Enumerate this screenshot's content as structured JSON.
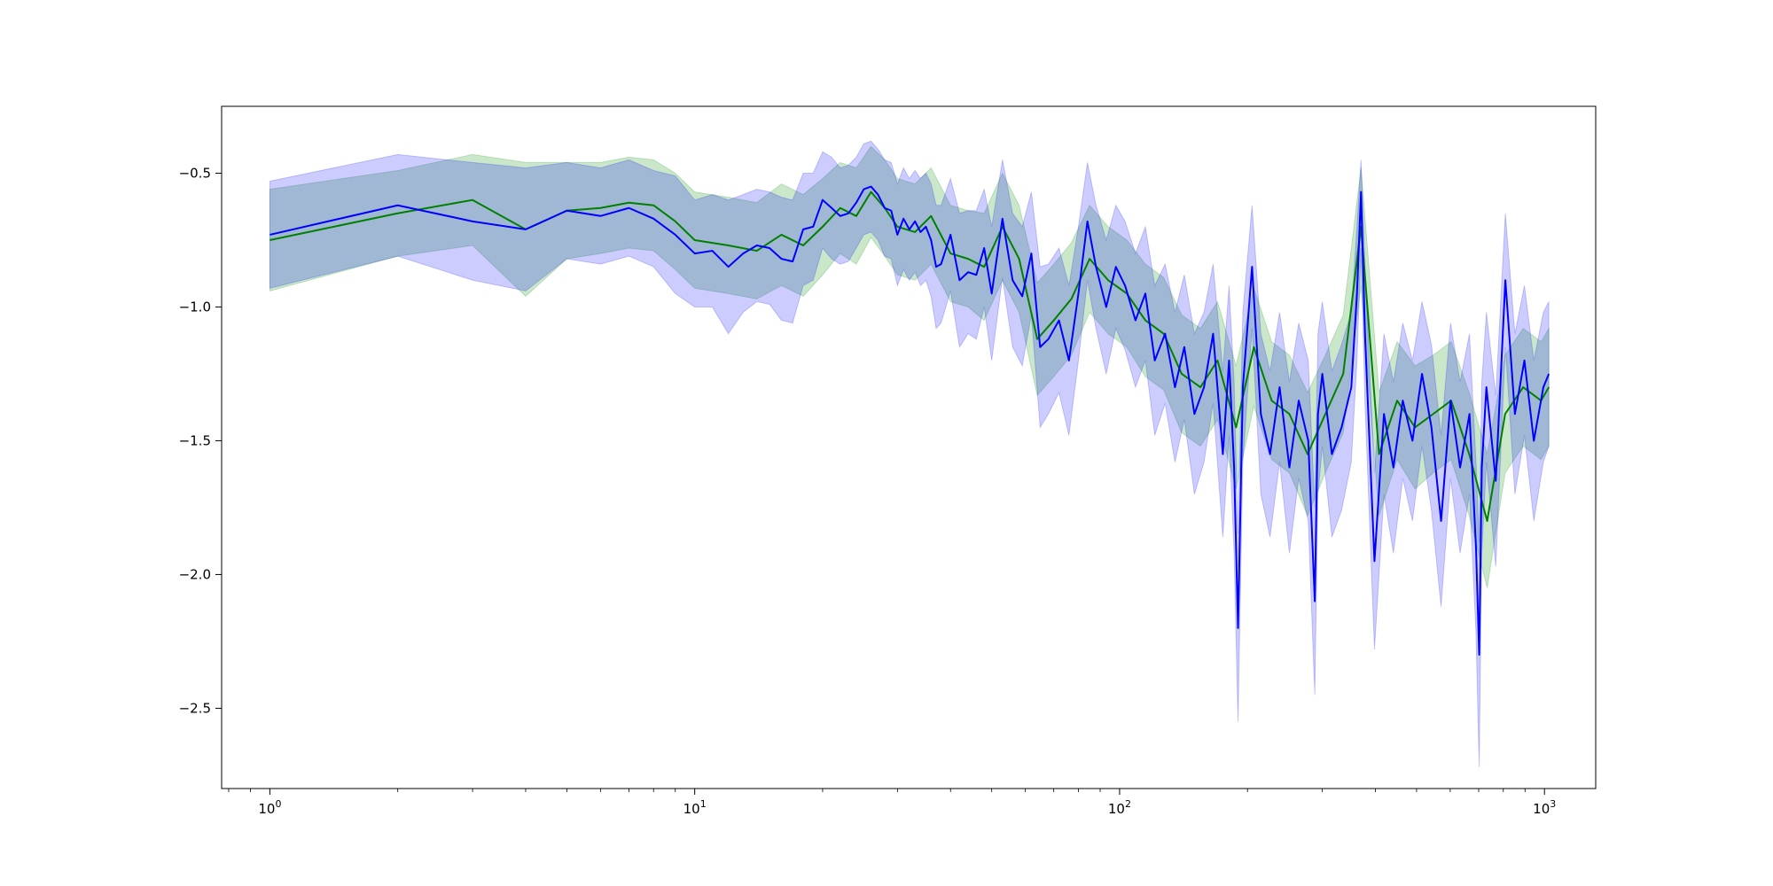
{
  "chart_data": {
    "type": "line",
    "title": "",
    "xlabel": "",
    "ylabel": "",
    "xscale": "log",
    "xlim": [
      0.77,
      1320
    ],
    "ylim": [
      -2.8,
      -0.25
    ],
    "grid": false,
    "legend": "none",
    "x_ticks": [
      {
        "value": 1,
        "base": "10",
        "exp": "0"
      },
      {
        "value": 10,
        "base": "10",
        "exp": "1"
      },
      {
        "value": 100,
        "base": "10",
        "exp": "2"
      },
      {
        "value": 1000,
        "base": "10",
        "exp": "3"
      }
    ],
    "y_ticks": [
      {
        "value": -0.5,
        "label": "−0.5"
      },
      {
        "value": -1.0,
        "label": "−1.0"
      },
      {
        "value": -1.5,
        "label": "−1.5"
      },
      {
        "value": -2.0,
        "label": "−2.0"
      },
      {
        "value": -2.5,
        "label": "−2.5"
      }
    ],
    "series": [
      {
        "color": "#008000",
        "band_color": "#2ca02c",
        "band_opacity": 0.25,
        "x": [
          1,
          2,
          3,
          4,
          5,
          6,
          7,
          8,
          9,
          10,
          12,
          14,
          16,
          18,
          20,
          22,
          24,
          26,
          28,
          30,
          33,
          36,
          40,
          44,
          48,
          53,
          58,
          64,
          70,
          77,
          85,
          94,
          104,
          115,
          127,
          140,
          155,
          170,
          188,
          207,
          228,
          251,
          277,
          305,
          336,
          370,
          408,
          450,
          496,
          547,
          603,
          665,
          733,
          808,
          891,
          982,
          1024
        ],
        "y": [
          -0.75,
          -0.65,
          -0.6,
          -0.71,
          -0.64,
          -0.63,
          -0.61,
          -0.62,
          -0.68,
          -0.75,
          -0.77,
          -0.79,
          -0.73,
          -0.77,
          -0.7,
          -0.63,
          -0.66,
          -0.57,
          -0.63,
          -0.7,
          -0.72,
          -0.66,
          -0.8,
          -0.82,
          -0.85,
          -0.7,
          -0.82,
          -1.12,
          -1.05,
          -0.97,
          -0.82,
          -0.9,
          -0.95,
          -1.05,
          -1.1,
          -1.25,
          -1.3,
          -1.2,
          -1.45,
          -1.15,
          -1.35,
          -1.4,
          -1.55,
          -1.4,
          -1.25,
          -0.7,
          -1.55,
          -1.35,
          -1.45,
          -1.4,
          -1.35,
          -1.55,
          -1.8,
          -1.4,
          -1.3,
          -1.35,
          -1.3
        ],
        "lower": [
          -0.94,
          -0.81,
          -0.77,
          -0.96,
          -0.82,
          -0.8,
          -0.78,
          -0.79,
          -0.86,
          -0.93,
          -0.95,
          -0.97,
          -0.92,
          -0.96,
          -0.88,
          -0.8,
          -0.84,
          -0.74,
          -0.81,
          -0.88,
          -0.9,
          -0.84,
          -0.98,
          -1.0,
          -1.05,
          -0.9,
          -1.02,
          -1.33,
          -1.26,
          -1.18,
          -1.02,
          -1.1,
          -1.15,
          -1.26,
          -1.31,
          -1.47,
          -1.52,
          -1.42,
          -1.68,
          -1.37,
          -1.57,
          -1.62,
          -1.78,
          -1.62,
          -1.47,
          -0.92,
          -1.78,
          -1.57,
          -1.68,
          -1.62,
          -1.57,
          -1.78,
          -2.05,
          -1.62,
          -1.52,
          -1.57,
          -1.52
        ],
        "upper": [
          -0.56,
          -0.49,
          -0.43,
          -0.46,
          -0.46,
          -0.46,
          -0.44,
          -0.45,
          -0.5,
          -0.57,
          -0.59,
          -0.61,
          -0.54,
          -0.58,
          -0.52,
          -0.46,
          -0.48,
          -0.4,
          -0.45,
          -0.52,
          -0.54,
          -0.48,
          -0.62,
          -0.64,
          -0.65,
          -0.5,
          -0.62,
          -0.91,
          -0.84,
          -0.76,
          -0.62,
          -0.7,
          -0.75,
          -0.84,
          -0.89,
          -1.03,
          -1.08,
          -0.98,
          -1.22,
          -0.93,
          -1.13,
          -1.18,
          -1.32,
          -1.18,
          -1.03,
          -0.48,
          -1.32,
          -1.13,
          -1.22,
          -1.18,
          -1.13,
          -1.32,
          -1.55,
          -1.18,
          -1.08,
          -1.13,
          -1.08
        ]
      },
      {
        "color": "#0000ff",
        "band_color": "#0000ff",
        "band_opacity": 0.2,
        "x": [
          1,
          2,
          3,
          4,
          5,
          6,
          7,
          8,
          9,
          10,
          11,
          12,
          13,
          14,
          15,
          16,
          17,
          18,
          19,
          20,
          21,
          22,
          23,
          24,
          25,
          26,
          27,
          28,
          29,
          30,
          31,
          32,
          33,
          34,
          35,
          36,
          37,
          38,
          40,
          42,
          44,
          46,
          48,
          50,
          53,
          56,
          59,
          62,
          65,
          68,
          72,
          76,
          80,
          84,
          88,
          93,
          98,
          103,
          109,
          115,
          121,
          128,
          135,
          142,
          150,
          158,
          166,
          175,
          181,
          186,
          190,
          195,
          205,
          215,
          226,
          238,
          251,
          264,
          278,
          288,
          293,
          300,
          316,
          333,
          351,
          362,
          370,
          378,
          398,
          419,
          441,
          464,
          489,
          515,
          542,
          571,
          601,
          633,
          666,
          690,
          702,
          712,
          730,
          768,
          809,
          852,
          897,
          944,
          994,
          1024
        ],
        "y": [
          -0.73,
          -0.62,
          -0.68,
          -0.71,
          -0.64,
          -0.66,
          -0.63,
          -0.67,
          -0.73,
          -0.8,
          -0.79,
          -0.85,
          -0.8,
          -0.77,
          -0.78,
          -0.82,
          -0.83,
          -0.71,
          -0.7,
          -0.6,
          -0.63,
          -0.66,
          -0.65,
          -0.61,
          -0.56,
          -0.55,
          -0.58,
          -0.63,
          -0.64,
          -0.73,
          -0.67,
          -0.71,
          -0.68,
          -0.72,
          -0.7,
          -0.75,
          -0.85,
          -0.84,
          -0.73,
          -0.9,
          -0.87,
          -0.88,
          -0.78,
          -0.95,
          -0.67,
          -0.9,
          -0.96,
          -0.8,
          -1.15,
          -1.12,
          -1.05,
          -1.2,
          -0.95,
          -0.68,
          -0.85,
          -1.0,
          -0.85,
          -0.92,
          -1.05,
          -0.95,
          -1.2,
          -1.1,
          -1.3,
          -1.15,
          -1.4,
          -1.3,
          -1.1,
          -1.55,
          -1.2,
          -1.6,
          -2.2,
          -1.3,
          -0.85,
          -1.4,
          -1.55,
          -1.3,
          -1.6,
          -1.35,
          -1.5,
          -2.1,
          -1.4,
          -1.25,
          -1.55,
          -1.45,
          -1.3,
          -0.95,
          -0.57,
          -1.1,
          -1.95,
          -1.4,
          -1.6,
          -1.35,
          -1.5,
          -1.25,
          -1.45,
          -1.8,
          -1.35,
          -1.6,
          -1.4,
          -1.9,
          -2.3,
          -1.6,
          -1.3,
          -1.65,
          -0.9,
          -1.4,
          -1.2,
          -1.5,
          -1.3,
          -1.25
        ],
        "lower": [
          -0.93,
          -0.81,
          -0.9,
          -0.94,
          -0.82,
          -0.84,
          -0.81,
          -0.85,
          -0.95,
          -1.0,
          -1.0,
          -1.1,
          -1.02,
          -0.98,
          -0.99,
          -1.05,
          -1.06,
          -0.92,
          -0.9,
          -0.78,
          -0.82,
          -0.84,
          -0.83,
          -0.78,
          -0.73,
          -0.72,
          -0.75,
          -0.81,
          -0.82,
          -0.92,
          -0.86,
          -0.9,
          -0.87,
          -0.92,
          -0.9,
          -0.96,
          -1.08,
          -1.06,
          -0.94,
          -1.15,
          -1.1,
          -1.12,
          -1.0,
          -1.2,
          -0.89,
          -1.15,
          -1.22,
          -1.03,
          -1.45,
          -1.4,
          -1.32,
          -1.48,
          -1.2,
          -0.9,
          -1.08,
          -1.25,
          -1.08,
          -1.16,
          -1.3,
          -1.2,
          -1.48,
          -1.36,
          -1.58,
          -1.42,
          -1.7,
          -1.58,
          -1.36,
          -1.86,
          -1.48,
          -1.92,
          -2.55,
          -1.58,
          -1.08,
          -1.7,
          -1.86,
          -1.58,
          -1.92,
          -1.64,
          -1.8,
          -2.45,
          -1.7,
          -1.52,
          -1.86,
          -1.76,
          -1.58,
          -1.2,
          -0.78,
          -1.36,
          -2.28,
          -1.7,
          -1.92,
          -1.64,
          -1.8,
          -1.52,
          -1.76,
          -2.12,
          -1.64,
          -1.92,
          -1.7,
          -2.22,
          -2.72,
          -1.92,
          -1.58,
          -1.97,
          -1.15,
          -1.7,
          -1.48,
          -1.8,
          -1.58,
          -1.52
        ],
        "upper": [
          -0.53,
          -0.43,
          -0.46,
          -0.48,
          -0.46,
          -0.48,
          -0.45,
          -0.49,
          -0.51,
          -0.6,
          -0.58,
          -0.6,
          -0.58,
          -0.56,
          -0.57,
          -0.59,
          -0.6,
          -0.5,
          -0.5,
          -0.42,
          -0.44,
          -0.48,
          -0.47,
          -0.44,
          -0.39,
          -0.38,
          -0.41,
          -0.45,
          -0.46,
          -0.54,
          -0.48,
          -0.52,
          -0.49,
          -0.52,
          -0.5,
          -0.54,
          -0.62,
          -0.62,
          -0.52,
          -0.65,
          -0.64,
          -0.64,
          -0.56,
          -0.7,
          -0.45,
          -0.65,
          -0.7,
          -0.57,
          -0.85,
          -0.84,
          -0.78,
          -0.92,
          -0.7,
          -0.46,
          -0.62,
          -0.75,
          -0.62,
          -0.68,
          -0.8,
          -0.7,
          -0.92,
          -0.84,
          -1.02,
          -0.88,
          -1.1,
          -1.02,
          -0.84,
          -1.24,
          -0.92,
          -1.28,
          -1.85,
          -1.02,
          -0.62,
          -1.1,
          -1.24,
          -1.02,
          -1.28,
          -1.06,
          -1.2,
          -1.75,
          -1.1,
          -0.98,
          -1.24,
          -1.14,
          -1.02,
          -0.7,
          -0.45,
          -0.84,
          -1.62,
          -1.1,
          -1.28,
          -1.06,
          -1.2,
          -0.98,
          -1.14,
          -1.48,
          -1.06,
          -1.28,
          -1.1,
          -1.58,
          -1.88,
          -1.28,
          -1.02,
          -1.33,
          -0.65,
          -1.1,
          -0.92,
          -1.2,
          -1.02,
          -0.98
        ]
      }
    ]
  }
}
